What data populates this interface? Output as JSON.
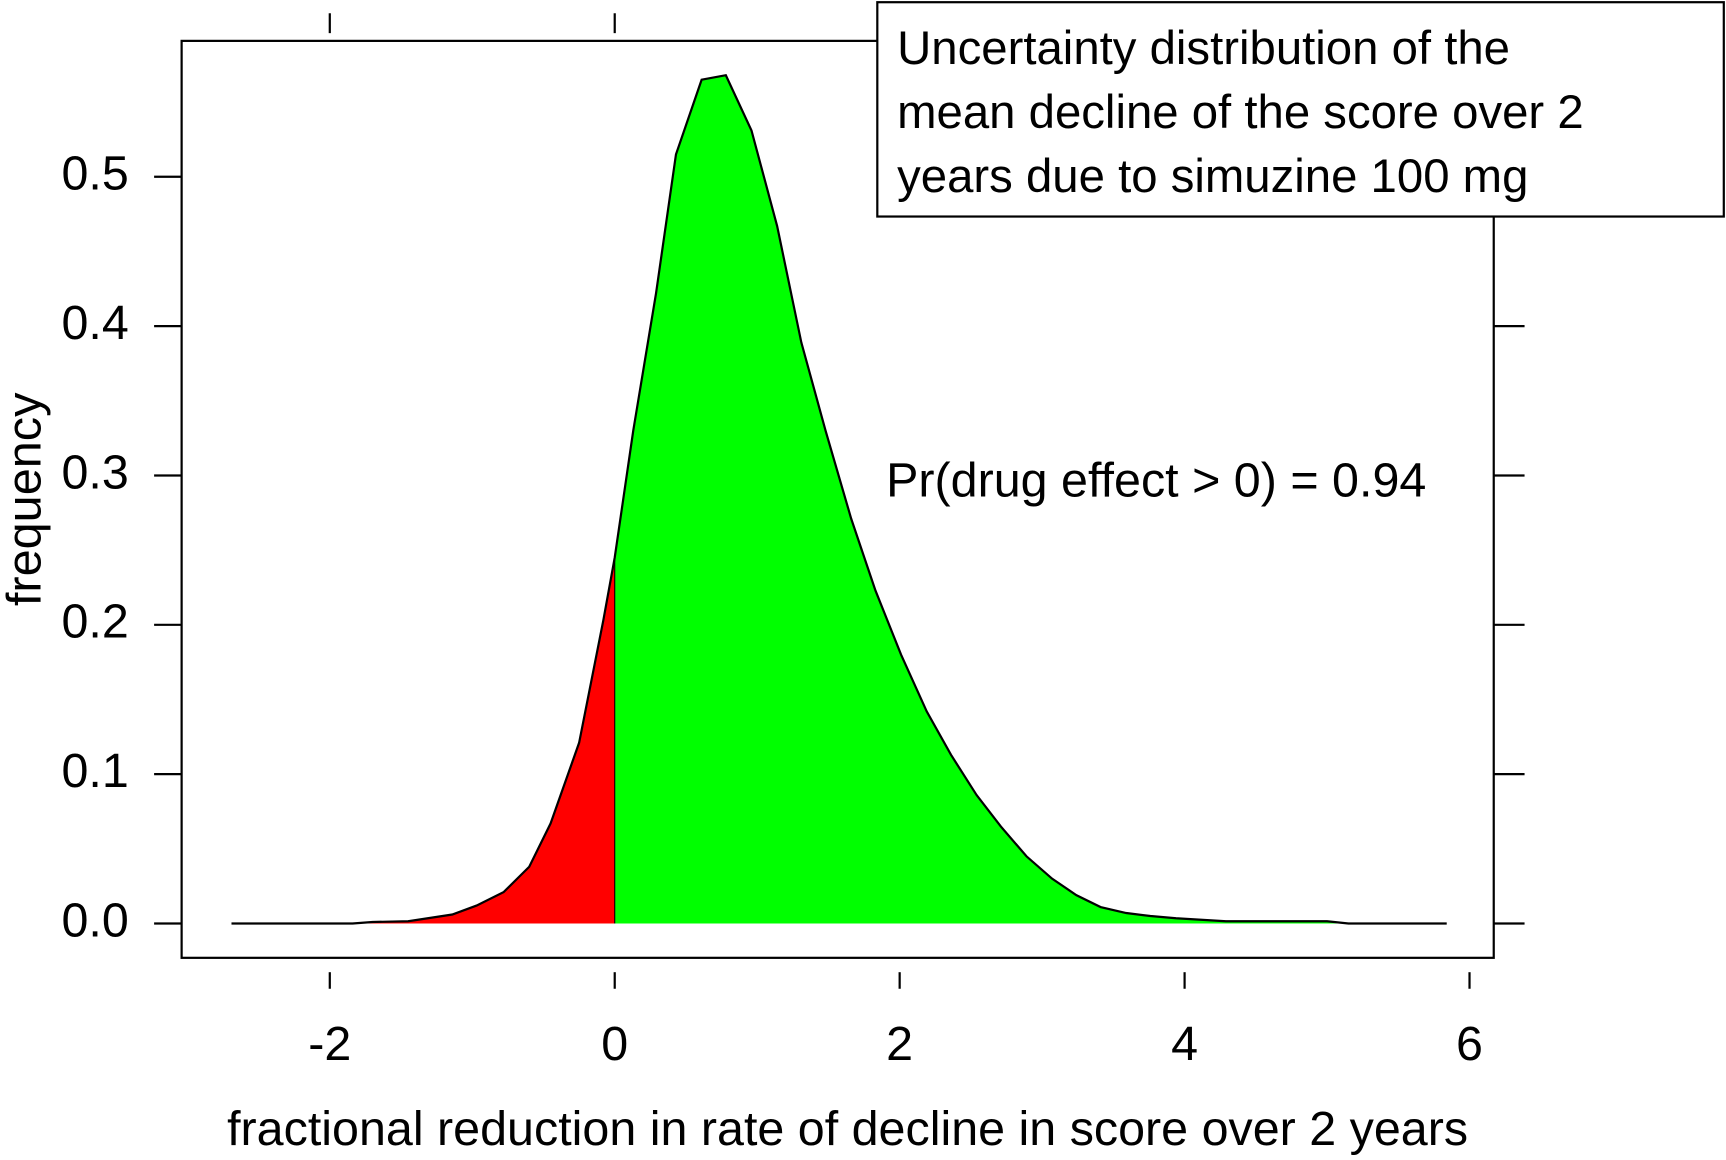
{
  "chart_data": {
    "type": "density",
    "xlabel": "fractional reduction in rate of decline in score over 2 years",
    "ylabel": "frequency",
    "legend_text": [
      "Uncertainty distribution of the",
      "mean decline of the score over 2",
      "years due to simuzine 100 mg"
    ],
    "annotation": "Pr(drug effect > 0) = 0.94",
    "x": [
      -2.69,
      -1.84,
      -1.7,
      -1.45,
      -1.14,
      -0.97,
      -0.78,
      -0.6,
      -0.45,
      -0.25,
      -0.08,
      0,
      0.13,
      0.29,
      0.43,
      0.61,
      0.78,
      0.96,
      1.14,
      1.31,
      1.48,
      1.66,
      1.83,
      2.01,
      2.19,
      2.36,
      2.54,
      2.71,
      2.89,
      3.07,
      3.24,
      3.41,
      3.59,
      3.76,
      3.94,
      4.29,
      5.0,
      5.15,
      5.84
    ],
    "values": [
      0,
      0,
      0.001,
      0.0015,
      0.006,
      0.012,
      0.021,
      0.038,
      0.067,
      0.121,
      0.203,
      0.245,
      0.33,
      0.422,
      0.515,
      0.565,
      0.568,
      0.531,
      0.467,
      0.389,
      0.33,
      0.271,
      0.223,
      0.18,
      0.142,
      0.113,
      0.086,
      0.065,
      0.045,
      0.03,
      0.019,
      0.011,
      0.007,
      0.005,
      0.0035,
      0.0015,
      0.0015,
      0,
      0
    ],
    "threshold": 0,
    "below_color": "#ff0000",
    "above_color": "#00ff00",
    "line_color": "#000000",
    "xlim": [
      -3.04,
      6.17
    ],
    "ylim": [
      -0.023,
      0.591
    ],
    "xticks": [
      -2,
      0,
      2,
      4,
      6
    ],
    "yticks": [
      {
        "value": 0,
        "label": "0.0"
      },
      0.1,
      0.2,
      0.3,
      0.4,
      0.5
    ]
  }
}
